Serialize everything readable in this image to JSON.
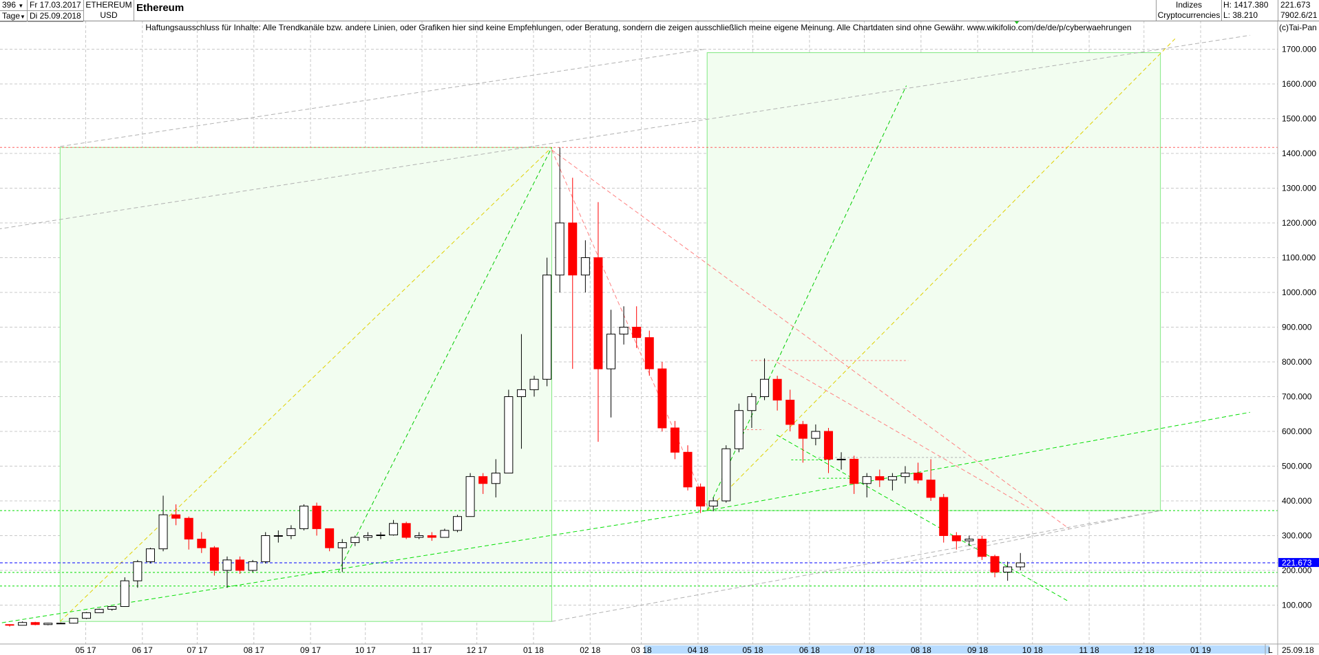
{
  "header": {
    "bars_count": "396",
    "interval": "Tage",
    "date_from": "Fr 17.03.2017",
    "date_to": "Di 25.09.2018",
    "symbol": "ETHEREUM",
    "currency": "USD",
    "title": "Ethereum",
    "group": "Indizes",
    "subgroup": "Cryptocurrencies",
    "high": "H: 1417.380",
    "low": "L: 38.210",
    "last": "221.673",
    "extra": "7902.6/21",
    "copyright": "(c)Tai-Pan",
    "disclaimer": "Haftungsausschluss für Inhalte: Alle Trendkanäle bzw. andere Linien, oder Grafiken hier sind keine Empfehlungen, oder Beratung, sondern die zeigen ausschließlich meine eigene Meinung. Alle Chartdaten sind ohne Gewähr.  www.wikifolio.com/de/de/p/cyberwaehrungen"
  },
  "footer": {
    "scale_mode": "L",
    "last_date": "25.09.18"
  },
  "colors": {
    "up": "#000000",
    "down": "#ff0000",
    "box_fill": "#f2fdf0",
    "box_stroke": "#80e880",
    "last_price": "#0000ff",
    "axis_highlight": "#b8dcff"
  },
  "chart_data": {
    "type": "candlestick",
    "title": "Ethereum",
    "ylim": [
      50,
      1750
    ],
    "grid": true,
    "y_ticks": [
      "100.000",
      "200.000",
      "300.000",
      "400.000",
      "500.000",
      "600.000",
      "700.000",
      "800.000",
      "900.000",
      "1000.000",
      "1100.000",
      "1200.000",
      "1300.000",
      "1400.000",
      "1500.000",
      "1600.000",
      "1700.000"
    ],
    "x_ticks": [
      "05 17",
      "06 17",
      "07 17",
      "08 17",
      "09 17",
      "10 17",
      "11 17",
      "12 17",
      "01 18",
      "02 18",
      "03 18",
      "04 18",
      "05 18",
      "06 18",
      "07 18",
      "08 18",
      "09 18",
      "10 18",
      "11 18",
      "12 18",
      "01 19"
    ],
    "last_price": 221.673,
    "last_price_label": "221.673",
    "candles": [
      [
        "17.03.17",
        44,
        45,
        38.2,
        42
      ],
      [
        "24.03.17",
        42,
        53,
        42,
        50
      ],
      [
        "31.03.17",
        50,
        52,
        42,
        44
      ],
      [
        "07.04.17",
        44,
        49,
        42,
        48
      ],
      [
        "14.04.17",
        48,
        50,
        46,
        48
      ],
      [
        "21.04.17",
        48,
        63,
        47,
        62
      ],
      [
        "28.04.17",
        62,
        80,
        60,
        78
      ],
      [
        "05.05.17",
        78,
        90,
        78,
        88
      ],
      [
        "12.05.17",
        88,
        97,
        84,
        96
      ],
      [
        "19.05.17",
        96,
        180,
        95,
        170
      ],
      [
        "26.05.17",
        170,
        230,
        150,
        225
      ],
      [
        "02.06.17",
        225,
        265,
        220,
        262
      ],
      [
        "09.06.17",
        262,
        415,
        255,
        360
      ],
      [
        "16.06.17",
        360,
        390,
        330,
        350
      ],
      [
        "23.06.17",
        350,
        355,
        260,
        290
      ],
      [
        "30.06.17",
        290,
        310,
        250,
        265
      ],
      [
        "07.07.17",
        265,
        270,
        185,
        200
      ],
      [
        "14.07.17",
        200,
        240,
        150,
        230
      ],
      [
        "21.07.17",
        230,
        240,
        190,
        200
      ],
      [
        "28.07.17",
        200,
        230,
        195,
        225
      ],
      [
        "04.08.17",
        225,
        310,
        220,
        300
      ],
      [
        "11.08.17",
        300,
        315,
        280,
        300
      ],
      [
        "18.08.17",
        300,
        330,
        290,
        320
      ],
      [
        "25.08.17",
        320,
        390,
        315,
        385
      ],
      [
        "01.09.17",
        385,
        395,
        300,
        320
      ],
      [
        "08.09.17",
        320,
        320,
        255,
        265
      ],
      [
        "15.09.17",
        265,
        290,
        195,
        280
      ],
      [
        "22.09.17",
        280,
        300,
        270,
        295
      ],
      [
        "29.09.17",
        295,
        310,
        285,
        300
      ],
      [
        "06.10.17",
        300,
        310,
        290,
        302
      ],
      [
        "13.10.17",
        302,
        345,
        300,
        335
      ],
      [
        "20.10.17",
        335,
        340,
        290,
        295
      ],
      [
        "27.10.17",
        295,
        310,
        290,
        300
      ],
      [
        "03.11.17",
        300,
        310,
        285,
        295
      ],
      [
        "10.11.17",
        295,
        320,
        295,
        315
      ],
      [
        "17.11.17",
        315,
        360,
        310,
        355
      ],
      [
        "24.11.17",
        355,
        480,
        355,
        470
      ],
      [
        "01.12.17",
        470,
        480,
        420,
        450
      ],
      [
        "08.12.17",
        450,
        520,
        410,
        480
      ],
      [
        "15.12.17",
        480,
        720,
        480,
        700
      ],
      [
        "22.12.17",
        700,
        880,
        550,
        720
      ],
      [
        "29.12.17",
        720,
        760,
        700,
        750
      ],
      [
        "05.01.18",
        750,
        1100,
        730,
        1050
      ],
      [
        "12.01.18",
        1050,
        1417.38,
        1000,
        1200
      ],
      [
        "19.01.18",
        1200,
        1330,
        780,
        1050
      ],
      [
        "26.01.18",
        1050,
        1150,
        1000,
        1100
      ],
      [
        "02.02.18",
        1100,
        1260,
        570,
        780
      ],
      [
        "09.02.18",
        780,
        950,
        640,
        880
      ],
      [
        "16.02.18",
        880,
        960,
        850,
        900
      ],
      [
        "23.02.18",
        900,
        960,
        840,
        870
      ],
      [
        "02.03.18",
        870,
        890,
        760,
        780
      ],
      [
        "09.03.18",
        780,
        800,
        600,
        610
      ],
      [
        "16.03.18",
        610,
        630,
        520,
        540
      ],
      [
        "23.03.18",
        540,
        560,
        430,
        440
      ],
      [
        "30.03.18",
        440,
        450,
        365,
        385
      ],
      [
        "06.04.18",
        385,
        410,
        370,
        400
      ],
      [
        "13.04.18",
        400,
        560,
        395,
        550
      ],
      [
        "20.04.18",
        550,
        680,
        540,
        660
      ],
      [
        "27.04.18",
        660,
        710,
        610,
        700
      ],
      [
        "04.05.18",
        700,
        810,
        690,
        750
      ],
      [
        "11.05.18",
        750,
        760,
        660,
        690
      ],
      [
        "18.05.18",
        690,
        720,
        600,
        620
      ],
      [
        "25.05.18",
        620,
        630,
        510,
        580
      ],
      [
        "01.06.18",
        580,
        620,
        560,
        600
      ],
      [
        "08.06.18",
        600,
        610,
        480,
        520
      ],
      [
        "15.06.18",
        520,
        540,
        490,
        520
      ],
      [
        "22.06.18",
        520,
        530,
        420,
        450
      ],
      [
        "29.06.18",
        450,
        480,
        410,
        470
      ],
      [
        "06.07.18",
        470,
        490,
        440,
        460
      ],
      [
        "13.07.18",
        460,
        480,
        430,
        470
      ],
      [
        "20.07.18",
        470,
        500,
        450,
        480
      ],
      [
        "27.07.18",
        480,
        510,
        450,
        460
      ],
      [
        "03.08.18",
        460,
        520,
        400,
        410
      ],
      [
        "10.08.18",
        410,
        420,
        280,
        300
      ],
      [
        "17.08.18",
        300,
        310,
        260,
        285
      ],
      [
        "24.08.18",
        285,
        300,
        270,
        290
      ],
      [
        "31.08.18",
        290,
        300,
        230,
        240
      ],
      [
        "07.09.18",
        240,
        245,
        180,
        195
      ],
      [
        "14.09.18",
        195,
        225,
        170,
        210
      ],
      [
        "21.09.18",
        210,
        250,
        200,
        221.673
      ]
    ],
    "horizontal_levels": [
      {
        "price": 1417.38,
        "color": "#ff6060"
      },
      {
        "price": 372,
        "color": "#00dd00"
      },
      {
        "price": 194,
        "color": "#00dd00"
      },
      {
        "price": 155,
        "color": "#00dd00"
      }
    ],
    "boxes": [
      {
        "from": "17.04.17",
        "to": "11.01.18",
        "low": 53,
        "high": 1417.38
      },
      {
        "from": "06.04.18",
        "to": "10.12.18",
        "low": 372,
        "high": 1690
      }
    ],
    "trendlines": [
      {
        "from": [
          "17.04.17",
          53
        ],
        "to": [
          "11.01.18",
          1417.38
        ],
        "color": "#e0d000"
      },
      {
        "from": [
          "16.09.17",
          194
        ],
        "to": [
          "11.01.18",
          1417.38
        ],
        "color": "#00cc00"
      },
      {
        "from": [
          "06.04.18",
          372
        ],
        "to": [
          "24.07.18",
          1595
        ],
        "color": "#00cc00"
      },
      {
        "from": [
          "06.04.18",
          372
        ],
        "to": [
          "18.12.18",
          1730
        ],
        "color": "#e0d000"
      },
      {
        "from": [
          "05.03.17",
          40
        ],
        "to": [
          "06.04.18",
          372
        ],
        "color": "#00dd00"
      },
      {
        "from": [
          "06.04.18",
          372
        ],
        "to": [
          "28.01.19",
          655
        ],
        "color": "#00dd00"
      },
      {
        "from": [
          "14.05.18",
          590
        ],
        "to": [
          "21.10.18",
          110
        ],
        "color": "#00dd00"
      },
      {
        "from": [
          "11.01.18",
          1410
        ],
        "to": [
          "06.04.18",
          385
        ],
        "color": "#ff8080"
      },
      {
        "from": [
          "11.01.18",
          1410
        ],
        "to": [
          "21.10.18",
          320
        ],
        "color": "#ff8080"
      },
      {
        "from": [
          "14.05.18",
          800
        ],
        "to": [
          "29.09.18",
          380
        ],
        "color": "#ff8080"
      },
      {
        "from": [
          "27.02.17",
          1170
        ],
        "to": [
          "28.01.19",
          1740
        ],
        "color": "#b0b0b0"
      },
      {
        "from": [
          "17.04.17",
          1420
        ],
        "to": [
          "05.04.18",
          1700
        ],
        "color": "#b0b0b0"
      },
      {
        "from": [
          "11.01.18",
          53
        ],
        "to": [
          "10.12.18",
          372
        ],
        "color": "#b0b0b0"
      },
      {
        "from": [
          "20.07.18",
          220
        ],
        "to": [
          "10.12.18",
          372
        ],
        "color": "#b0b0b0"
      }
    ],
    "short_levels": [
      {
        "from": "30.04.18",
        "to": "25.07.18",
        "price": 804,
        "color": "#ff8080"
      },
      {
        "from": "21.04.18",
        "to": "07.05.18",
        "price": 605,
        "color": "#ff8080"
      },
      {
        "from": "06.06.18",
        "to": "26.08.18",
        "price": 525,
        "color": "#b0b0b0"
      },
      {
        "from": "22.05.18",
        "to": "13.06.18",
        "price": 518,
        "color": "#00dd00"
      },
      {
        "from": "06.06.18",
        "to": "28.06.18",
        "price": 465,
        "color": "#00dd00"
      }
    ]
  }
}
